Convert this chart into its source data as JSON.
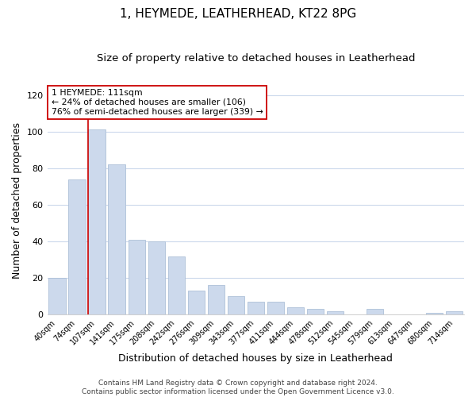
{
  "title": "1, HEYMEDE, LEATHERHEAD, KT22 8PG",
  "subtitle": "Size of property relative to detached houses in Leatherhead",
  "xlabel": "Distribution of detached houses by size in Leatherhead",
  "ylabel": "Number of detached properties",
  "bar_labels": [
    "40sqm",
    "74sqm",
    "107sqm",
    "141sqm",
    "175sqm",
    "208sqm",
    "242sqm",
    "276sqm",
    "309sqm",
    "343sqm",
    "377sqm",
    "411sqm",
    "444sqm",
    "478sqm",
    "512sqm",
    "545sqm",
    "579sqm",
    "613sqm",
    "647sqm",
    "680sqm",
    "714sqm"
  ],
  "bar_values": [
    20,
    74,
    101,
    82,
    41,
    40,
    32,
    13,
    16,
    10,
    7,
    7,
    4,
    3,
    2,
    0,
    3,
    0,
    0,
    1,
    2
  ],
  "bar_color": "#ccd9ec",
  "bar_edge_color": "#aec0d8",
  "highlight_bar_index": 2,
  "highlight_line_color": "#cc0000",
  "ylim": [
    0,
    125
  ],
  "yticks": [
    0,
    20,
    40,
    60,
    80,
    100,
    120
  ],
  "annotation_title": "1 HEYMEDE: 111sqm",
  "annotation_line1": "← 24% of detached houses are smaller (106)",
  "annotation_line2": "76% of semi-detached houses are larger (339) →",
  "annotation_box_color": "#ffffff",
  "annotation_box_edge": "#cc0000",
  "footer_line1": "Contains HM Land Registry data © Crown copyright and database right 2024.",
  "footer_line2": "Contains public sector information licensed under the Open Government Licence v3.0.",
  "background_color": "#ffffff",
  "grid_color": "#ccd9ec",
  "title_fontsize": 11,
  "subtitle_fontsize": 9.5,
  "axis_label_fontsize": 9,
  "footer_fontsize": 6.5
}
